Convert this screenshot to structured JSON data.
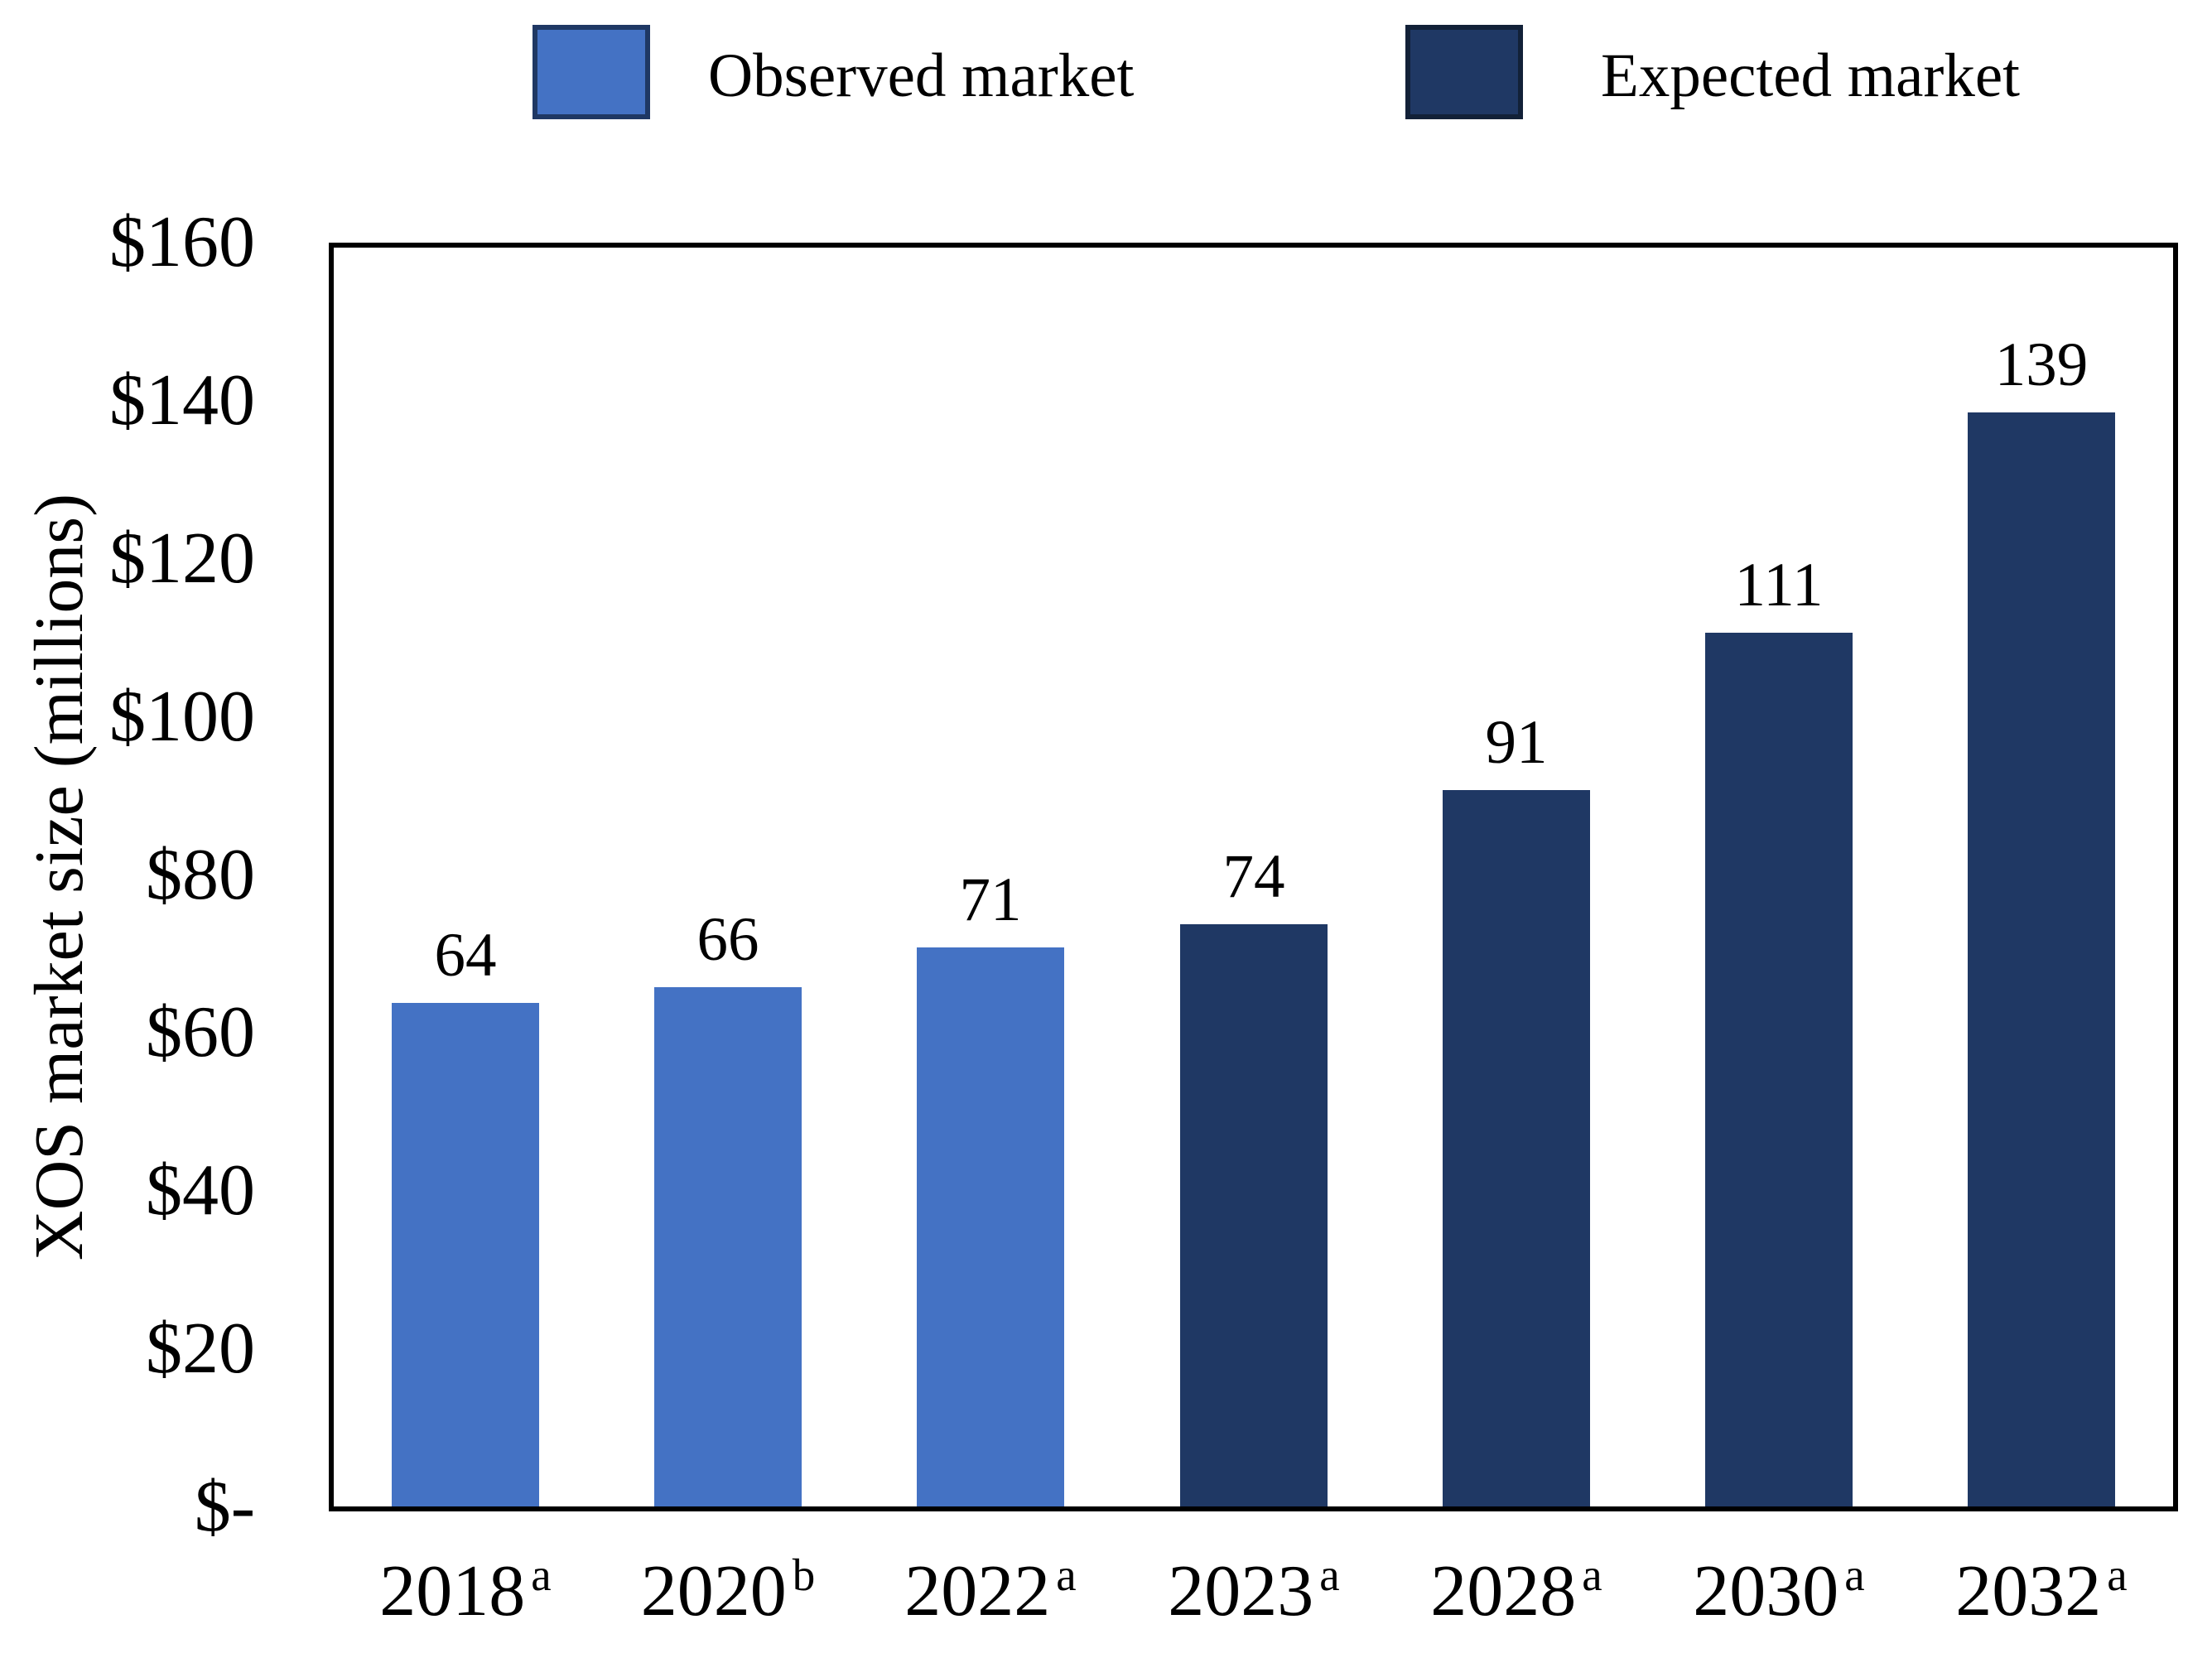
{
  "legend": {
    "items": [
      {
        "label": "Observed market",
        "swatch_color": "#4472C4",
        "swatch_border": "#1F3864"
      },
      {
        "label": "Expected market",
        "swatch_color": "#1F3864",
        "swatch_border": "#122138"
      }
    ]
  },
  "chart_data": {
    "type": "bar",
    "title": "",
    "xlabel": "",
    "ylabel": "XOS market size (millions)",
    "ylim": [
      0,
      160
    ],
    "ytick_step": 20,
    "ytick_labels": [
      "$160",
      "$140",
      "$120",
      "$100",
      "$80",
      "$60",
      "$40",
      "$20",
      "$-"
    ],
    "grid": false,
    "legend_position": "top",
    "categories": [
      "2018",
      "2020",
      "2022",
      "2023",
      "2028",
      "2030",
      "2032"
    ],
    "category_superscripts": [
      "a",
      "b",
      "a",
      "a",
      "a",
      "a",
      "a"
    ],
    "series": [
      {
        "name": "Observed market",
        "color": "#4472C4",
        "values": [
          64,
          66,
          71,
          null,
          null,
          null,
          null
        ]
      },
      {
        "name": "Expected market",
        "color": "#1F3864",
        "values": [
          null,
          null,
          null,
          74,
          91,
          111,
          139
        ]
      }
    ],
    "bar_value_labels": [
      64,
      66,
      71,
      74,
      91,
      111,
      139
    ]
  }
}
